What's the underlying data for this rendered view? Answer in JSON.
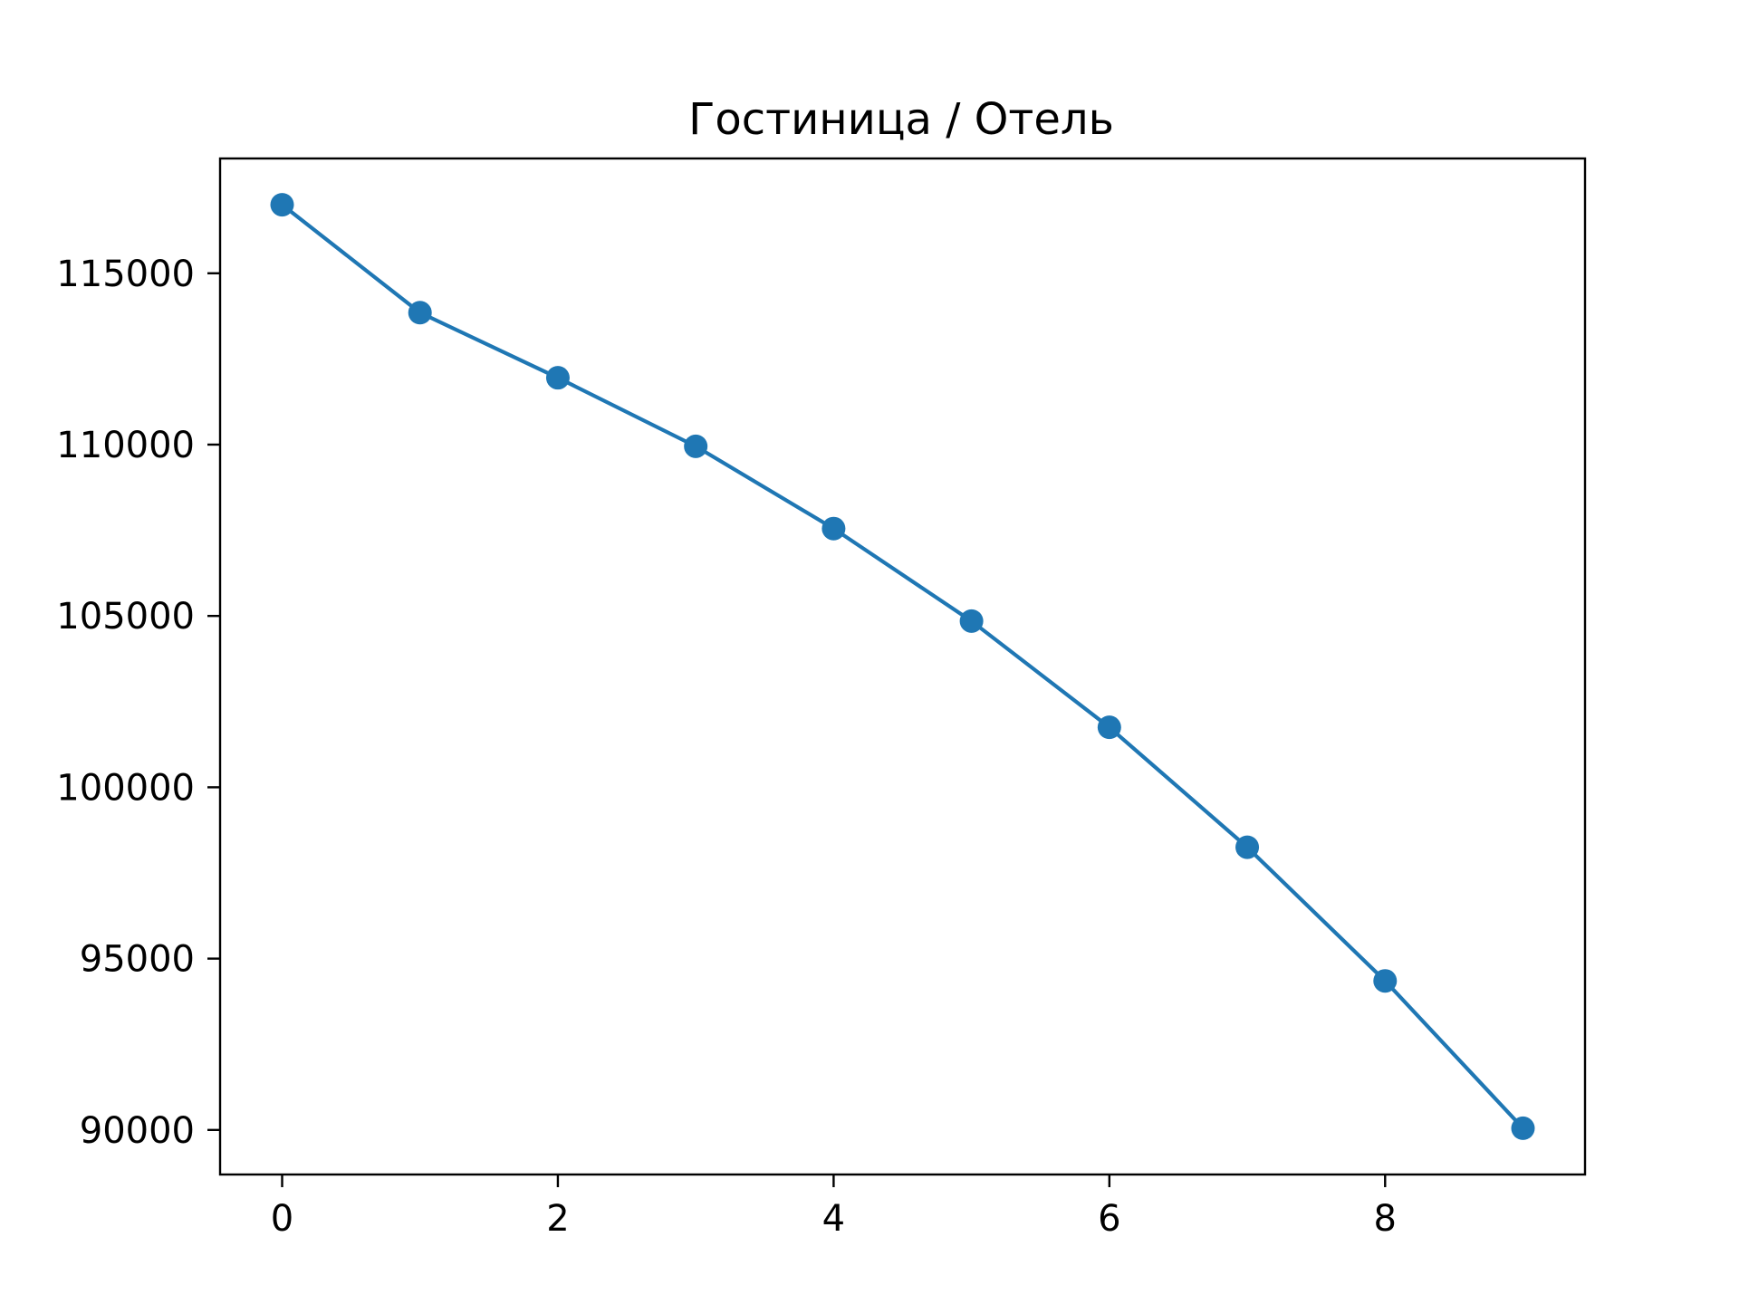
{
  "chart_data": {
    "type": "line",
    "title": "Гостиница / Отель",
    "xlabel": "",
    "ylabel": "",
    "x": [
      0,
      1,
      2,
      3,
      4,
      5,
      6,
      7,
      8,
      9
    ],
    "series": [
      {
        "values": [
          117000,
          113850,
          111950,
          109950,
          107550,
          104850,
          101750,
          98250,
          94350,
          90050
        ],
        "color": "#1f77b4",
        "marker": "circle"
      }
    ],
    "xlim": [
      -0.45,
      9.45
    ],
    "ylim": [
      88700,
      118350
    ],
    "xticks": [
      0,
      2,
      4,
      6,
      8
    ],
    "yticks": [
      90000,
      95000,
      100000,
      105000,
      110000,
      115000
    ],
    "xtick_labels": [
      "0",
      "2",
      "4",
      "6",
      "8"
    ],
    "ytick_labels": [
      "90000",
      "95000",
      "100000",
      "105000",
      "110000",
      "115000"
    ],
    "grid": false,
    "legend": false
  }
}
